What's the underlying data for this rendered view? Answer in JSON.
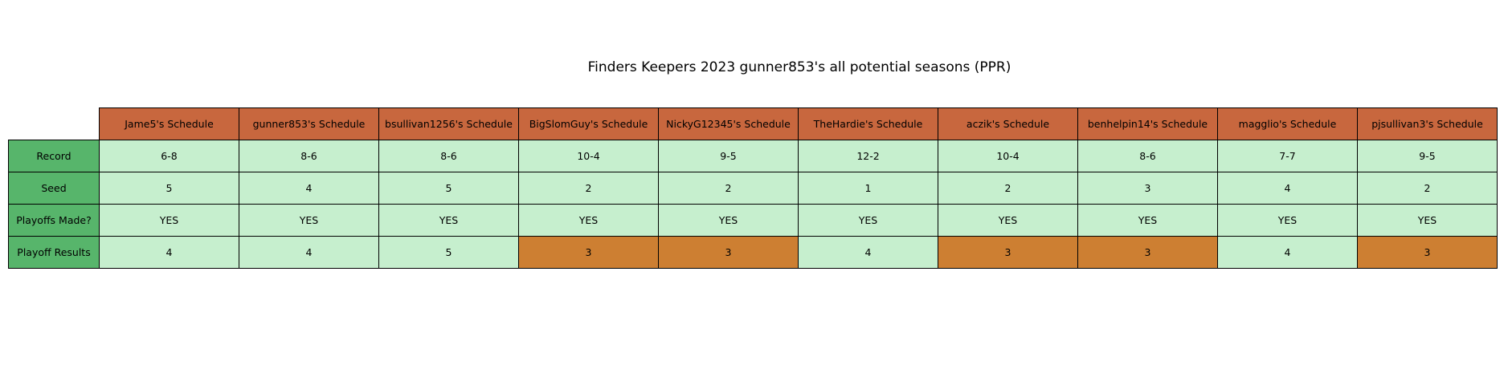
{
  "chart_data": {
    "type": "table",
    "title": "Finders Keepers 2023 gunner853's all potential seasons (PPR)",
    "columns": [
      "Jame5's Schedule",
      "gunner853's Schedule",
      "bsullivan1256's Schedule",
      "BigSlomGuy's Schedule",
      "NickyG12345's Schedule",
      "TheHardie's Schedule",
      "aczik's Schedule",
      "benhelpin14's Schedule",
      "magglio's Schedule",
      "pjsullivan3's Schedule"
    ],
    "rows": [
      {
        "label": "Record",
        "values": [
          "6-8",
          "8-6",
          "8-6",
          "10-4",
          "9-5",
          "12-2",
          "10-4",
          "8-6",
          "7-7",
          "9-5"
        ]
      },
      {
        "label": "Seed",
        "values": [
          "5",
          "4",
          "5",
          "2",
          "2",
          "1",
          "2",
          "3",
          "4",
          "2"
        ]
      },
      {
        "label": "Playoffs Made?",
        "values": [
          "YES",
          "YES",
          "YES",
          "YES",
          "YES",
          "YES",
          "YES",
          "YES",
          "YES",
          "YES"
        ]
      },
      {
        "label": "Playoff Results",
        "values": [
          "4",
          "4",
          "5",
          "3",
          "3",
          "4",
          "3",
          "3",
          "4",
          "3"
        ]
      }
    ],
    "colors": {
      "header": "#c8673e",
      "row_label": "#57b56b",
      "cell": "#c6efce",
      "highlight": "#cd7f32"
    },
    "highlighted_value": "3"
  }
}
